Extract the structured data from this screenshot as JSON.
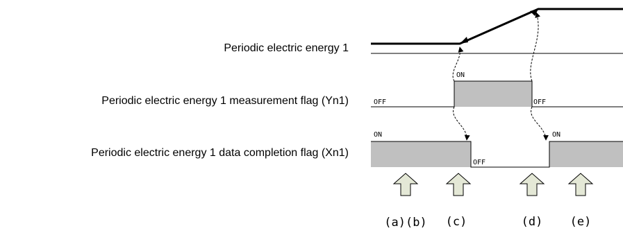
{
  "signals": {
    "energy": {
      "label": "Periodic electric energy 1"
    },
    "measurement_flag": {
      "label": "Periodic electric energy 1 measurement flag (Yn1)",
      "off_left": "OFF",
      "on": "ON",
      "off_right": "OFF"
    },
    "completion_flag": {
      "label": "Periodic electric energy 1 data completion flag (Xn1)",
      "on_left": "ON",
      "off": "OFF",
      "on_right": "ON"
    }
  },
  "steps": [
    {
      "label": "(a)(b)"
    },
    {
      "label": "(c)"
    },
    {
      "label": "(d)"
    },
    {
      "label": "(e)"
    }
  ],
  "colors": {
    "fill": "#c0c0c0",
    "arrow_fill": "#e4e8d6",
    "line": "#000000"
  }
}
